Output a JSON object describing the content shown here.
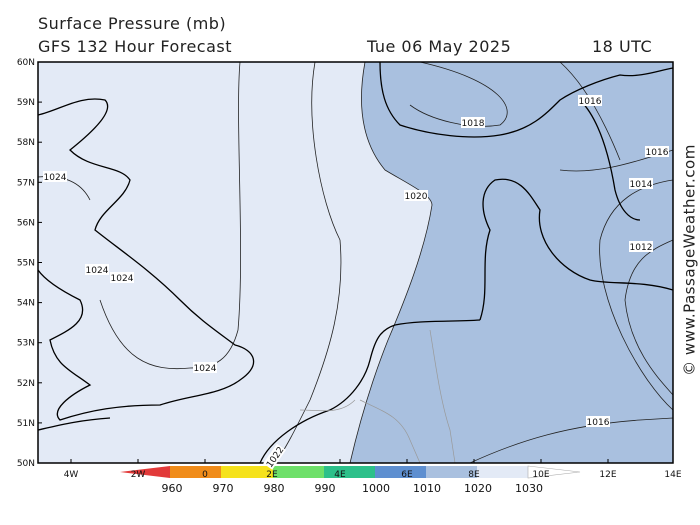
{
  "header": {
    "title": "Surface Pressure (mb)",
    "subtitle": "GFS 132 Hour Forecast",
    "date": "Tue 06 May 2025",
    "time": "18 UTC"
  },
  "map": {
    "lat_labels": [
      "60N",
      "59N",
      "58N",
      "57N",
      "56N",
      "55N",
      "54N",
      "53N",
      "52N",
      "51N",
      "50N"
    ],
    "lon_labels": [
      "4W",
      "2W",
      "0",
      "2E",
      "4E",
      "6E",
      "8E",
      "10E",
      "12E",
      "14E"
    ],
    "isobar_labels": [
      "1024",
      "1024",
      "1024",
      "1024",
      "1020",
      "1018",
      "1016",
      "1016",
      "1014",
      "1012",
      "1016",
      "1022"
    ]
  },
  "colorbar": {
    "labels": [
      "960",
      "970",
      "980",
      "990",
      "1000",
      "1010",
      "1020",
      "1030"
    ]
  },
  "watermark": "© www.PassageWeather.com"
}
